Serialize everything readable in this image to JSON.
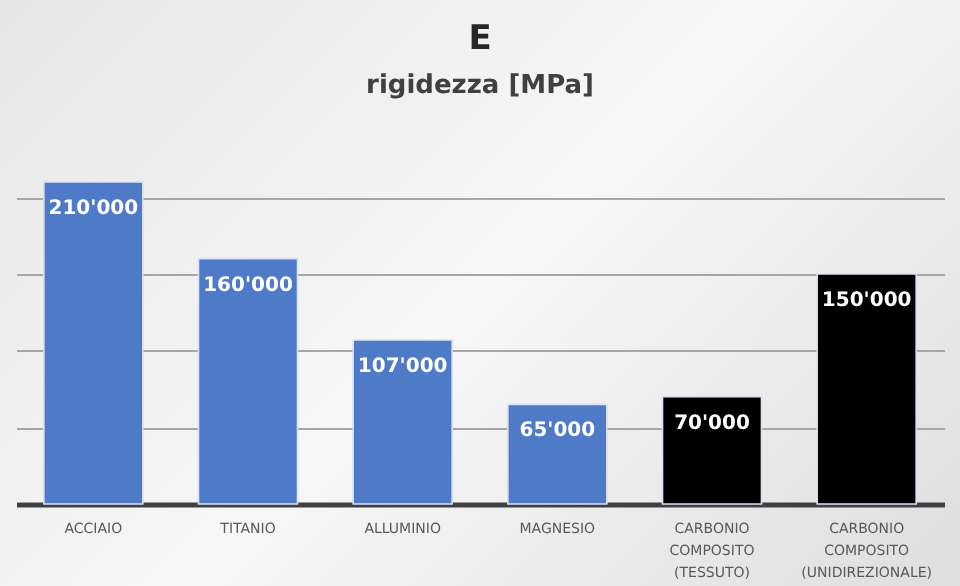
{
  "chart_data": {
    "type": "bar",
    "title": "E",
    "subtitle": "rigidezza [MPa]",
    "categories": [
      "ACCIAIO",
      "TITANIO",
      "ALLUMINIO",
      "MAGNESIO",
      "CARBONIO COMPOSITO (TESSUTO)",
      "CARBONIO COMPOSITO (UNIDIREZIONALE)"
    ],
    "values": [
      210000,
      160000,
      107000,
      65000,
      70000,
      150000
    ],
    "colors": [
      "#4f7ac7",
      "#4f7ac7",
      "#4f7ac7",
      "#4f7ac7",
      "#000000",
      "#000000"
    ],
    "value_labels": [
      "210'000",
      "160'000",
      "107'000",
      "65'000",
      "70'000",
      "150'000"
    ],
    "yticks": [
      {
        "value": 50000,
        "label": null
      },
      {
        "value": 100000,
        "label": null
      },
      {
        "value": 150000,
        "label": null
      },
      {
        "value": 200000,
        "label": null
      }
    ],
    "grid": true,
    "tick_labels": "x"
  }
}
